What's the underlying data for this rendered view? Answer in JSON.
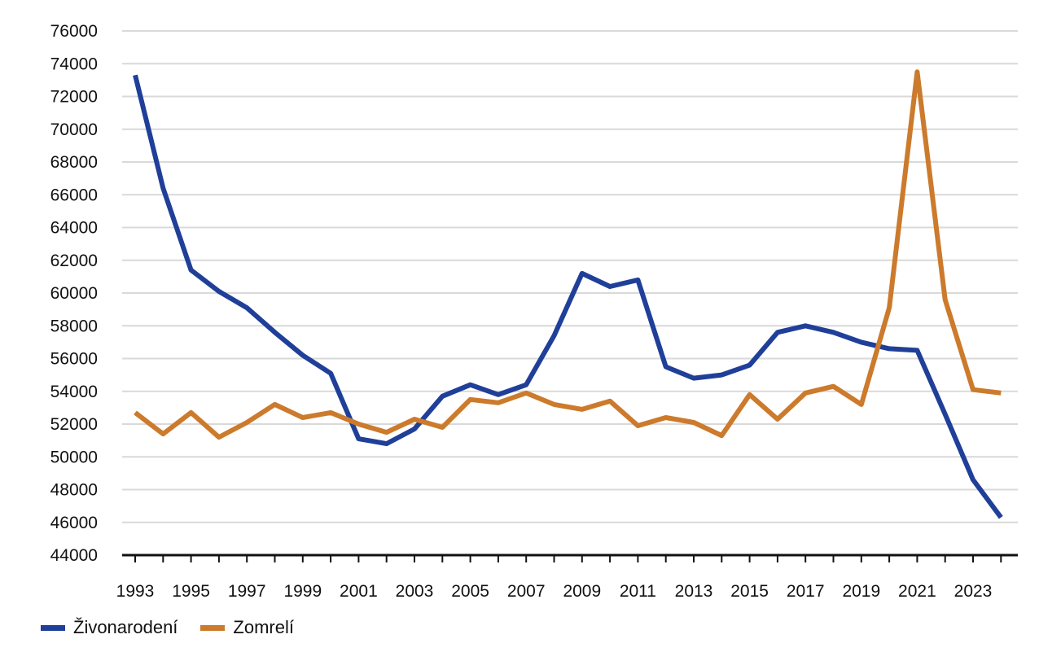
{
  "chart_data": {
    "type": "line",
    "title": "",
    "xlabel": "",
    "ylabel": "",
    "x": [
      1993,
      1994,
      1995,
      1996,
      1997,
      1998,
      1999,
      2000,
      2001,
      2002,
      2003,
      2004,
      2005,
      2006,
      2007,
      2008,
      2009,
      2010,
      2011,
      2012,
      2013,
      2014,
      2015,
      2016,
      2017,
      2018,
      2019,
      2020,
      2021,
      2022,
      2023,
      2024
    ],
    "x_tick_labels": [
      "1993",
      "1995",
      "1997",
      "1999",
      "2001",
      "2003",
      "2005",
      "2007",
      "2009",
      "2011",
      "2013",
      "2015",
      "2017",
      "2019",
      "2021",
      "2023"
    ],
    "ylim": [
      44000,
      76000
    ],
    "y_tick_labels": [
      "44000",
      "46000",
      "48000",
      "50000",
      "52000",
      "54000",
      "56000",
      "58000",
      "60000",
      "62000",
      "64000",
      "66000",
      "68000",
      "70000",
      "72000",
      "74000",
      "76000"
    ],
    "grid": "horizontal",
    "legend_position": "bottom-left",
    "series": [
      {
        "name": "Živonarodení",
        "color": "#1f3f99",
        "values": [
          73300,
          66400,
          61400,
          60100,
          59100,
          57600,
          56200,
          55100,
          51100,
          50800,
          51700,
          53700,
          54400,
          53800,
          54400,
          57400,
          61200,
          60400,
          60800,
          55500,
          54800,
          55000,
          55600,
          57600,
          58000,
          57600,
          57000,
          56600,
          56500,
          52600,
          48600,
          46300
        ]
      },
      {
        "name": "Zomrelí",
        "color": "#cc7a2c",
        "values": [
          52700,
          51400,
          52700,
          51200,
          52100,
          53200,
          52400,
          52700,
          52000,
          51500,
          52300,
          51800,
          53500,
          53300,
          53900,
          53200,
          52900,
          53400,
          51900,
          52400,
          52100,
          51300,
          53800,
          52300,
          53900,
          54300,
          53200,
          59100,
          73500,
          59600,
          54100,
          53900
        ]
      }
    ]
  }
}
